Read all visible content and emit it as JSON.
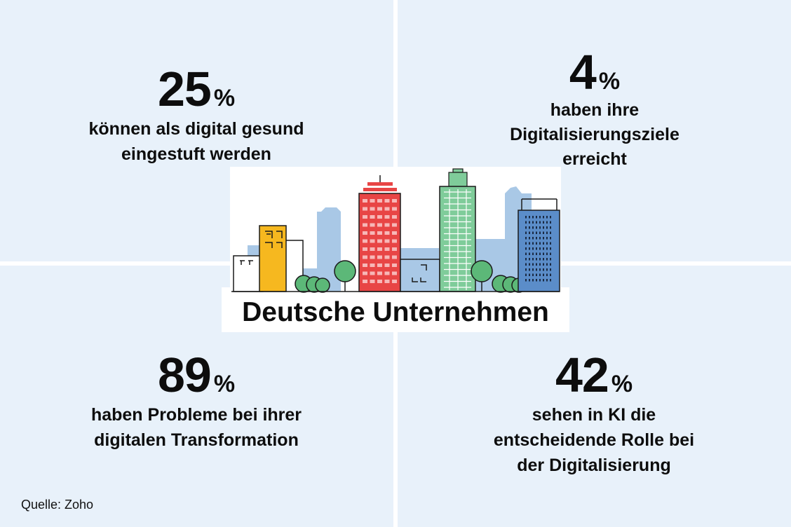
{
  "stats": [
    {
      "number": "25",
      "unit": "%",
      "line1": "können als digital gesund",
      "line2": "eingestuft werden",
      "line3": ""
    },
    {
      "number": "4",
      "unit": "%",
      "line1": "haben ihre",
      "line2": "Digitalisierungsziele",
      "line3": "erreicht"
    },
    {
      "number": "89",
      "unit": "%",
      "line1": "haben Probleme bei ihrer",
      "line2": "digitalen Transformation",
      "line3": ""
    },
    {
      "number": "42",
      "unit": "%",
      "line1": "sehen in KI die",
      "line2": "entscheidende Rolle bei",
      "line3": "der Digitalisierung"
    }
  ],
  "headline": "Deutsche Unternehmen",
  "source": "Quelle: Zoho",
  "colors": {
    "background": "#e8f1fa",
    "building_red": "#e84545",
    "building_green": "#7fcc9a",
    "building_blue": "#5b8dc9",
    "building_yellow": "#f6b81f",
    "building_light": "#a9c8e6",
    "tree": "#5cb878"
  }
}
